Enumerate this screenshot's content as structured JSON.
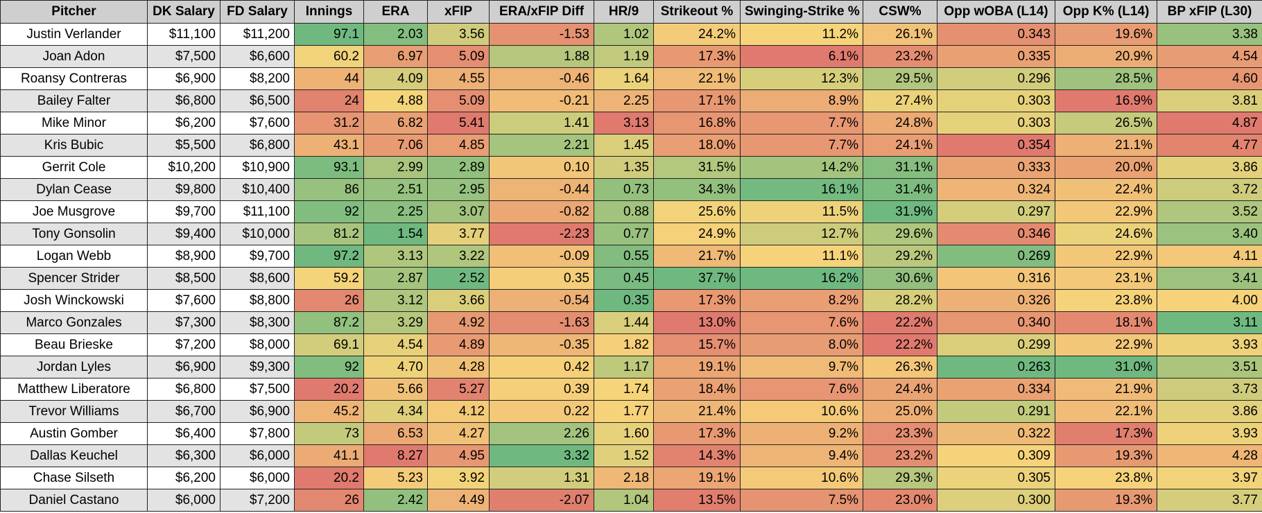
{
  "headers": [
    "Pitcher",
    "DK Salary",
    "FD Salary",
    "Innings",
    "ERA",
    "xFIP",
    "ERA/xFIP Diff",
    "HR/9",
    "Strikeout %",
    "Swinging-Strike %",
    "CSW%",
    "Opp wOBA (L14)",
    "Opp K% (L14)",
    "BP xFIP (L30)"
  ],
  "rows": [
    [
      "Justin Verlander",
      "$11,100",
      "$11,200",
      "97.1",
      "2.03",
      "3.56",
      "-1.53",
      "1.02",
      "24.2%",
      "11.2%",
      "26.1%",
      "0.343",
      "19.6%",
      "3.38"
    ],
    [
      "Joan Adon",
      "$7,500",
      "$6,600",
      "60.2",
      "6.97",
      "5.09",
      "1.88",
      "1.19",
      "17.3%",
      "6.1%",
      "23.2%",
      "0.335",
      "20.9%",
      "4.54"
    ],
    [
      "Roansy Contreras",
      "$6,900",
      "$8,200",
      "44",
      "4.09",
      "4.55",
      "-0.46",
      "1.64",
      "22.1%",
      "12.3%",
      "29.5%",
      "0.296",
      "28.5%",
      "4.60"
    ],
    [
      "Bailey Falter",
      "$6,800",
      "$6,500",
      "24",
      "4.88",
      "5.09",
      "-0.21",
      "2.25",
      "17.1%",
      "8.9%",
      "27.4%",
      "0.303",
      "16.9%",
      "3.81"
    ],
    [
      "Mike Minor",
      "$6,200",
      "$7,600",
      "31.2",
      "6.82",
      "5.41",
      "1.41",
      "3.13",
      "16.8%",
      "7.7%",
      "24.8%",
      "0.303",
      "26.5%",
      "4.87"
    ],
    [
      "Kris Bubic",
      "$5,500",
      "$6,800",
      "43.1",
      "7.06",
      "4.85",
      "2.21",
      "1.45",
      "18.0%",
      "7.7%",
      "24.1%",
      "0.354",
      "21.1%",
      "4.77"
    ],
    [
      "Gerrit Cole",
      "$10,200",
      "$10,900",
      "93.1",
      "2.99",
      "2.89",
      "0.10",
      "1.35",
      "31.5%",
      "14.2%",
      "31.1%",
      "0.333",
      "20.0%",
      "3.86"
    ],
    [
      "Dylan Cease",
      "$9,800",
      "$10,400",
      "86",
      "2.51",
      "2.95",
      "-0.44",
      "0.73",
      "34.3%",
      "16.1%",
      "31.4%",
      "0.324",
      "22.4%",
      "3.72"
    ],
    [
      "Joe Musgrove",
      "$9,700",
      "$11,100",
      "92",
      "2.25",
      "3.07",
      "-0.82",
      "0.88",
      "25.6%",
      "11.5%",
      "31.9%",
      "0.297",
      "22.9%",
      "3.52"
    ],
    [
      "Tony Gonsolin",
      "$9,400",
      "$10,000",
      "81.2",
      "1.54",
      "3.77",
      "-2.23",
      "0.77",
      "24.9%",
      "12.7%",
      "29.6%",
      "0.346",
      "24.6%",
      "3.40"
    ],
    [
      "Logan Webb",
      "$8,900",
      "$9,700",
      "97.2",
      "3.13",
      "3.22",
      "-0.09",
      "0.55",
      "21.7%",
      "11.1%",
      "29.2%",
      "0.269",
      "22.9%",
      "4.11"
    ],
    [
      "Spencer Strider",
      "$8,500",
      "$8,600",
      "59.2",
      "2.87",
      "2.52",
      "0.35",
      "0.45",
      "37.7%",
      "16.2%",
      "30.6%",
      "0.316",
      "23.1%",
      "3.41"
    ],
    [
      "Josh Winckowski",
      "$7,600",
      "$8,800",
      "26",
      "3.12",
      "3.66",
      "-0.54",
      "0.35",
      "17.3%",
      "8.2%",
      "28.2%",
      "0.326",
      "23.8%",
      "4.00"
    ],
    [
      "Marco Gonzales",
      "$7,300",
      "$8,300",
      "87.2",
      "3.29",
      "4.92",
      "-1.63",
      "1.44",
      "13.0%",
      "7.6%",
      "22.2%",
      "0.340",
      "18.1%",
      "3.11"
    ],
    [
      "Beau Brieske",
      "$7,200",
      "$8,000",
      "69.1",
      "4.54",
      "4.89",
      "-0.35",
      "1.82",
      "15.7%",
      "8.0%",
      "22.2%",
      "0.299",
      "22.9%",
      "3.93"
    ],
    [
      "Jordan Lyles",
      "$6,900",
      "$9,300",
      "92",
      "4.70",
      "4.28",
      "0.42",
      "1.17",
      "19.1%",
      "9.7%",
      "26.3%",
      "0.263",
      "31.0%",
      "3.51"
    ],
    [
      "Matthew Liberatore",
      "$6,800",
      "$7,500",
      "20.2",
      "5.66",
      "5.27",
      "0.39",
      "1.74",
      "18.4%",
      "7.6%",
      "24.4%",
      "0.334",
      "21.9%",
      "3.73"
    ],
    [
      "Trevor Williams",
      "$6,700",
      "$6,900",
      "45.2",
      "4.34",
      "4.12",
      "0.22",
      "1.77",
      "21.4%",
      "10.6%",
      "25.0%",
      "0.291",
      "22.1%",
      "3.86"
    ],
    [
      "Austin Gomber",
      "$6,400",
      "$7,800",
      "73",
      "6.53",
      "4.27",
      "2.26",
      "1.60",
      "17.3%",
      "9.2%",
      "23.3%",
      "0.322",
      "17.3%",
      "3.93"
    ],
    [
      "Dallas Keuchel",
      "$6,300",
      "$6,000",
      "41.1",
      "8.27",
      "4.95",
      "3.32",
      "1.52",
      "14.3%",
      "9.4%",
      "23.2%",
      "0.309",
      "19.3%",
      "4.28"
    ],
    [
      "Chase Silseth",
      "$6,200",
      "$6,000",
      "20.2",
      "5.23",
      "3.92",
      "1.31",
      "2.18",
      "19.1%",
      "10.6%",
      "29.3%",
      "0.305",
      "23.8%",
      "3.97"
    ],
    [
      "Daniel Castano",
      "$6,000",
      "$7,200",
      "26",
      "2.42",
      "4.49",
      "-2.07",
      "1.04",
      "13.5%",
      "7.5%",
      "23.0%",
      "0.300",
      "19.3%",
      "3.77"
    ]
  ],
  "color_scale": {
    "low_good_red": "#e07a6e",
    "mid_yellow": "#f6d47a",
    "high_good_green": "#6fb980"
  }
}
